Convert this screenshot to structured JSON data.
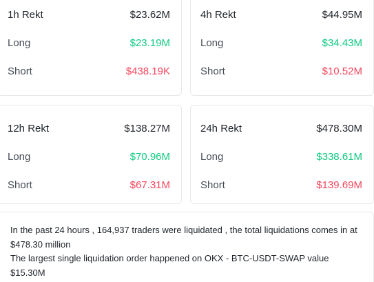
{
  "cards": [
    {
      "title": "1h Rekt",
      "total": "$23.62M",
      "long_label": "Long",
      "long_value": "$23.19M",
      "short_label": "Short",
      "short_value": "$438.19K"
    },
    {
      "title": "4h Rekt",
      "total": "$44.95M",
      "long_label": "Long",
      "long_value": "$34.43M",
      "short_label": "Short",
      "short_value": "$10.52M"
    },
    {
      "title": "12h Rekt",
      "total": "$138.27M",
      "long_label": "Long",
      "long_value": "$70.96M",
      "short_label": "Short",
      "short_value": "$67.31M"
    },
    {
      "title": "24h Rekt",
      "total": "$478.30M",
      "long_label": "Long",
      "long_value": "$338.61M",
      "short_label": "Short",
      "short_value": "$139.69M"
    }
  ],
  "summary": {
    "line1": "In the past 24 hours , 164,937 traders were liquidated , the total liquidations comes in at $478.30 million",
    "line2": "The largest single liquidation order happened on OKX - BTC-USDT-SWAP value $15.30M"
  },
  "colors": {
    "long": "#0ecb81",
    "short": "#f6465d",
    "text": "#1e2329",
    "border": "#e6e8ea"
  }
}
